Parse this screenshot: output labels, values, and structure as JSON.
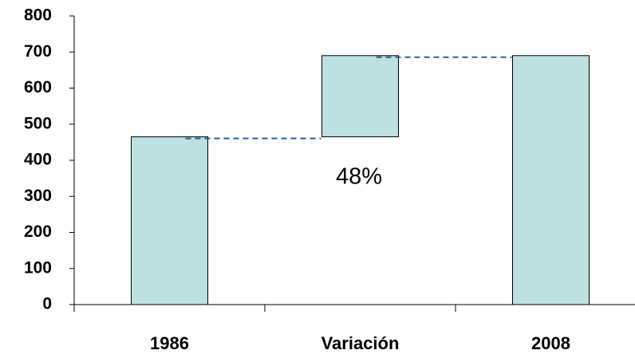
{
  "chart_data": {
    "type": "waterfall",
    "categories": [
      "1986",
      "Variación",
      "2008"
    ],
    "values": [
      465,
      225,
      690
    ],
    "measures": [
      "absolute",
      "relative",
      "absolute"
    ],
    "color": "#bde0e0",
    "annotation": "48%",
    "ylim": [
      0,
      800
    ],
    "yticks": [
      0,
      100,
      200,
      300,
      400,
      500,
      600,
      700,
      800
    ]
  }
}
